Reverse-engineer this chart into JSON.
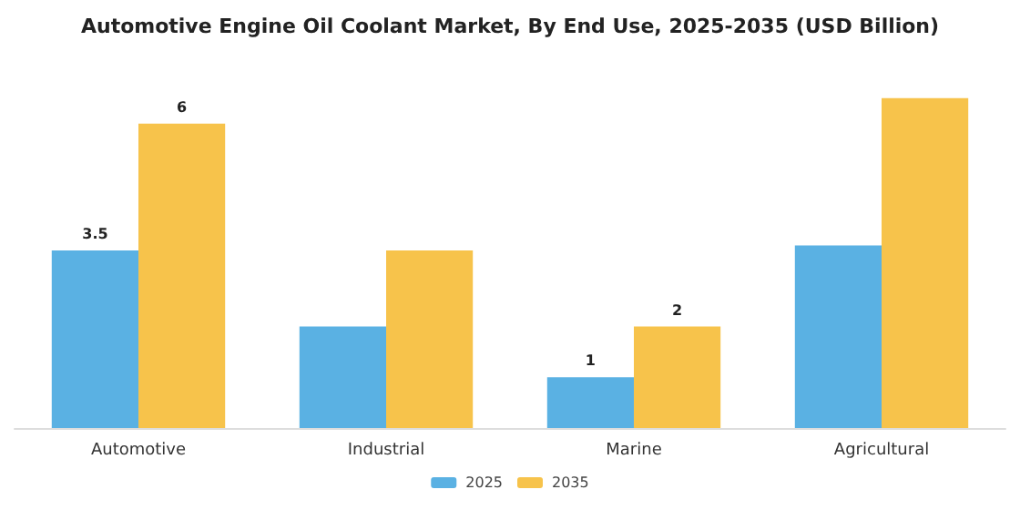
{
  "chart_data": {
    "type": "bar",
    "title": "Automotive Engine Oil Coolant Market, By End Use, 2025-2035 (USD Billion)",
    "categories": [
      "Automotive",
      "Industrial",
      "Marine",
      "Agricultural"
    ],
    "series": [
      {
        "name": "2025",
        "color": "#5ab1e3",
        "values": [
          3.5,
          2,
          1,
          3.6
        ],
        "value_labels": [
          "3.5",
          null,
          "1",
          null
        ]
      },
      {
        "name": "2035",
        "color": "#f7c34b",
        "values": [
          6,
          3.5,
          2,
          6.5
        ],
        "value_labels": [
          "6",
          null,
          "2",
          null
        ]
      }
    ],
    "legend": "bottom"
  }
}
